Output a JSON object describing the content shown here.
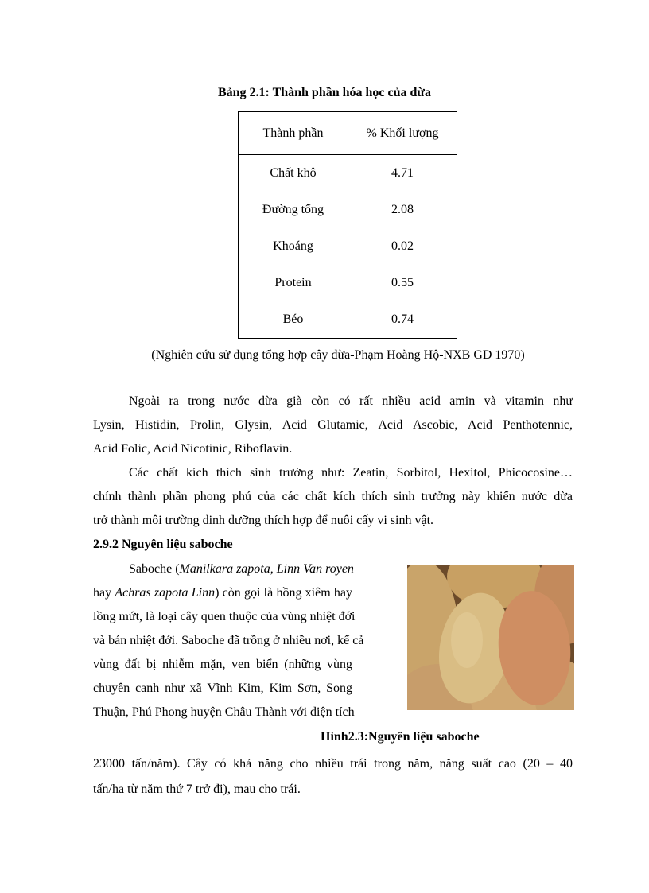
{
  "table_title": "Bảng 2.1: Thành phần hóa học của dừa",
  "table": {
    "headers": [
      "Thành phần",
      "% Khối lượng"
    ],
    "rows": [
      [
        "Chất khô",
        "4.71"
      ],
      [
        "Đường tổng",
        "2.08"
      ],
      [
        "Khoáng",
        "0.02"
      ],
      [
        "Protein",
        "0.55"
      ],
      [
        "Béo",
        "0.74"
      ]
    ]
  },
  "table_source": "(Nghiên cứu sử dụng tổng hợp cây dừa-Phạm Hoàng Hộ-NXB GD 1970)",
  "para1": [
    "Ngoài ra trong nước dừa già còn có rất nhiều acid amin và vitamin như",
    "Lysin, Histidin, Prolin, Glysin, Acid Glutamic, Acid Ascobic, Acid Penthotennic,",
    "Acid Folic, Acid Nicotinic, Riboflavin."
  ],
  "para2": [
    "Các chất kích thích sinh trưởng như: Zeatin, Sorbitol, Hexitol, Phicocosine…",
    "chính thành phần phong phú của các chất kích thích sinh trưởng này khiến nước dừa",
    "trở thành môi trường dinh dưỡng thích hợp để nuôi cấy vi sinh vật."
  ],
  "section_heading": "2.9.2 Nguyên liệu saboche",
  "saboche": {
    "l1a": "Saboche (",
    "l1b": "Manilkara zapota, Linn Van royen",
    "l2a": "hay ",
    "l2b": "Achras zapota Linn",
    "l2c": ")  còn gọi là hồng xiêm hay",
    "lines": [
      "lồng mứt, là loại cây quen thuộc của vùng nhiệt đới",
      "và bán nhiệt đới. Saboche đã trồng ở nhiều nơi, kể cả",
      "vùng đất bị nhiễm mặn, ven biển (những vùng",
      "chuyên canh như xã Vĩnh Kim, Kim Sơn, Song",
      "Thuận, Phú Phong  huyện Châu Thành với diện tích"
    ]
  },
  "figure_caption": "Hình2.3:Nguyên liệu saboche",
  "para3": [
    "23000 tấn/năm). Cây có khả năng cho nhiều trái trong năm, năng suất cao (20 – 40",
    "tấn/ha từ năm thứ 7 trở đi), mau cho trái."
  ]
}
